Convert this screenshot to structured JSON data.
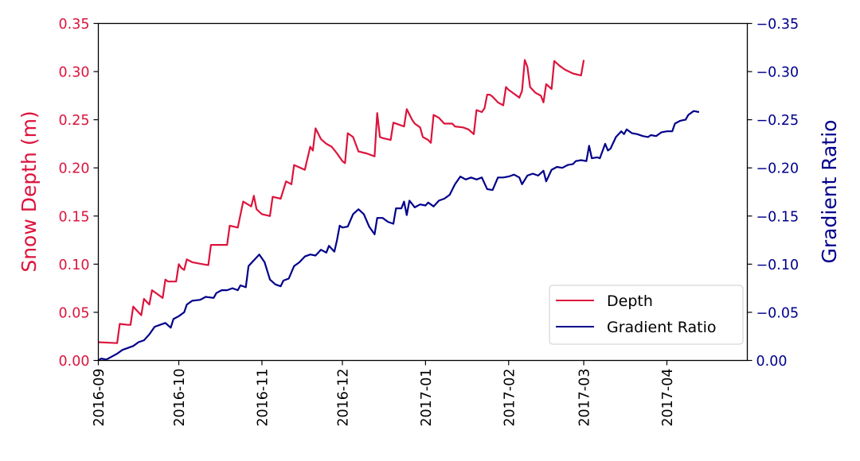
{
  "chart_data": {
    "type": "line",
    "xlabel": "",
    "x_ticks": [
      "2016-09",
      "2016-10",
      "2016-11",
      "2016-12",
      "2017-01",
      "2017-02",
      "2017-03",
      "2017-04"
    ],
    "xlim": [
      "2016-09-01",
      "2017-05-01"
    ],
    "y_left": {
      "label": "Snow Depth (m)",
      "color": "#dc143c",
      "ylim": [
        0,
        0.35
      ],
      "ticks": [
        "0.00",
        "0.05",
        "0.10",
        "0.15",
        "0.20",
        "0.25",
        "0.30",
        "0.35"
      ]
    },
    "y_right": {
      "label": "Gradient Ratio",
      "color": "#00008b",
      "ylim": [
        0,
        -0.35
      ],
      "ticks": [
        "0.00",
        "−0.05",
        "−0.10",
        "−0.15",
        "−0.20",
        "−0.25",
        "−0.30",
        "−0.35"
      ]
    },
    "legend": {
      "placement": "lower-right"
    },
    "grid": false,
    "series": [
      {
        "name": "Depth",
        "axis": "left",
        "color": "#dc143c",
        "points": [
          [
            "2016-09-01",
            0.019
          ],
          [
            "2016-09-08",
            0.018
          ],
          [
            "2016-09-09",
            0.038
          ],
          [
            "2016-09-12",
            0.037
          ],
          [
            "2016-09-13",
            0.037
          ],
          [
            "2016-09-14",
            0.056
          ],
          [
            "2016-09-17",
            0.047
          ],
          [
            "2016-09-18",
            0.064
          ],
          [
            "2016-09-19",
            0.061
          ],
          [
            "2016-09-20",
            0.058
          ],
          [
            "2016-09-21",
            0.073
          ],
          [
            "2016-09-25",
            0.065
          ],
          [
            "2016-09-26",
            0.084
          ],
          [
            "2016-09-27",
            0.082
          ],
          [
            "2016-09-30",
            0.082
          ],
          [
            "2016-10-01",
            0.1
          ],
          [
            "2016-10-02",
            0.096
          ],
          [
            "2016-10-03",
            0.094
          ],
          [
            "2016-10-04",
            0.105
          ],
          [
            "2016-10-06",
            0.102
          ],
          [
            "2016-10-10",
            0.1
          ],
          [
            "2016-10-12",
            0.099
          ],
          [
            "2016-10-13",
            0.12
          ],
          [
            "2016-10-15",
            0.12
          ],
          [
            "2016-10-19",
            0.12
          ],
          [
            "2016-10-20",
            0.14
          ],
          [
            "2016-10-23",
            0.138
          ],
          [
            "2016-10-25",
            0.165
          ],
          [
            "2016-10-28",
            0.16
          ],
          [
            "2016-10-29",
            0.171
          ],
          [
            "2016-10-30",
            0.157
          ],
          [
            "2016-11-01",
            0.152
          ],
          [
            "2016-11-04",
            0.15
          ],
          [
            "2016-11-05",
            0.17
          ],
          [
            "2016-11-08",
            0.168
          ],
          [
            "2016-11-10",
            0.186
          ],
          [
            "2016-11-12",
            0.183
          ],
          [
            "2016-11-13",
            0.203
          ],
          [
            "2016-11-17",
            0.198
          ],
          [
            "2016-11-19",
            0.222
          ],
          [
            "2016-11-20",
            0.218
          ],
          [
            "2016-11-21",
            0.241
          ],
          [
            "2016-11-23",
            0.23
          ],
          [
            "2016-11-25",
            0.225
          ],
          [
            "2016-11-27",
            0.222
          ],
          [
            "2016-11-29",
            0.215
          ],
          [
            "2016-12-01",
            0.207
          ],
          [
            "2016-12-02",
            0.205
          ],
          [
            "2016-12-03",
            0.236
          ],
          [
            "2016-12-05",
            0.232
          ],
          [
            "2016-12-07",
            0.217
          ],
          [
            "2016-12-10",
            0.215
          ],
          [
            "2016-12-13",
            0.212
          ],
          [
            "2016-12-14",
            0.257
          ],
          [
            "2016-12-15",
            0.232
          ],
          [
            "2016-12-16",
            0.231
          ],
          [
            "2016-12-19",
            0.229
          ],
          [
            "2016-12-20",
            0.247
          ],
          [
            "2016-12-22",
            0.245
          ],
          [
            "2016-12-24",
            0.243
          ],
          [
            "2016-12-25",
            0.261
          ],
          [
            "2016-12-27",
            0.25
          ],
          [
            "2016-12-28",
            0.246
          ],
          [
            "2016-12-30",
            0.242
          ],
          [
            "2016-12-31",
            0.232
          ],
          [
            "2017-01-02",
            0.229
          ],
          [
            "2017-01-03",
            0.226
          ],
          [
            "2017-01-04",
            0.255
          ],
          [
            "2017-01-06",
            0.252
          ],
          [
            "2017-01-08",
            0.246
          ],
          [
            "2017-01-11",
            0.246
          ],
          [
            "2017-01-12",
            0.243
          ],
          [
            "2017-01-15",
            0.242
          ],
          [
            "2017-01-17",
            0.24
          ],
          [
            "2017-01-19",
            0.235
          ],
          [
            "2017-01-20",
            0.26
          ],
          [
            "2017-01-22",
            0.258
          ],
          [
            "2017-01-23",
            0.262
          ],
          [
            "2017-01-24",
            0.276
          ],
          [
            "2017-01-25",
            0.276
          ],
          [
            "2017-01-26",
            0.274
          ],
          [
            "2017-01-28",
            0.268
          ],
          [
            "2017-01-30",
            0.265
          ],
          [
            "2017-01-31",
            0.284
          ],
          [
            "2017-02-01",
            0.281
          ],
          [
            "2017-02-03",
            0.277
          ],
          [
            "2017-02-05",
            0.273
          ],
          [
            "2017-02-06",
            0.28
          ],
          [
            "2017-02-07",
            0.312
          ],
          [
            "2017-02-08",
            0.305
          ],
          [
            "2017-02-09",
            0.284
          ],
          [
            "2017-02-11",
            0.278
          ],
          [
            "2017-02-13",
            0.275
          ],
          [
            "2017-02-14",
            0.268
          ],
          [
            "2017-02-15",
            0.287
          ],
          [
            "2017-02-17",
            0.282
          ],
          [
            "2017-02-18",
            0.311
          ],
          [
            "2017-02-20",
            0.306
          ],
          [
            "2017-02-22",
            0.302
          ],
          [
            "2017-02-25",
            0.298
          ],
          [
            "2017-02-28",
            0.296
          ],
          [
            "2017-03-01",
            0.312
          ]
        ]
      },
      {
        "name": "Gradient Ratio",
        "axis": "right",
        "color": "#00008b",
        "points": [
          [
            "2016-09-01",
            0.0
          ],
          [
            "2016-09-02",
            -0.002
          ],
          [
            "2016-09-04",
            -0.001
          ],
          [
            "2016-09-06",
            -0.004
          ],
          [
            "2016-09-08",
            -0.007
          ],
          [
            "2016-09-10",
            -0.011
          ],
          [
            "2016-09-12",
            -0.013
          ],
          [
            "2016-09-14",
            -0.015
          ],
          [
            "2016-09-16",
            -0.019
          ],
          [
            "2016-09-18",
            -0.021
          ],
          [
            "2016-09-20",
            -0.027
          ],
          [
            "2016-09-22",
            -0.035
          ],
          [
            "2016-09-24",
            -0.037
          ],
          [
            "2016-09-26",
            -0.039
          ],
          [
            "2016-09-28",
            -0.034
          ],
          [
            "2016-09-29",
            -0.043
          ],
          [
            "2016-10-01",
            -0.046
          ],
          [
            "2016-10-03",
            -0.05
          ],
          [
            "2016-10-04",
            -0.058
          ],
          [
            "2016-10-06",
            -0.062
          ],
          [
            "2016-10-09",
            -0.063
          ],
          [
            "2016-10-11",
            -0.066
          ],
          [
            "2016-10-14",
            -0.065
          ],
          [
            "2016-10-15",
            -0.07
          ],
          [
            "2016-10-17",
            -0.073
          ],
          [
            "2016-10-19",
            -0.073
          ],
          [
            "2016-10-21",
            -0.075
          ],
          [
            "2016-10-23",
            -0.073
          ],
          [
            "2016-10-24",
            -0.078
          ],
          [
            "2016-10-26",
            -0.076
          ],
          [
            "2016-10-27",
            -0.098
          ],
          [
            "2016-10-29",
            -0.104
          ],
          [
            "2016-10-31",
            -0.11
          ],
          [
            "2016-11-02",
            -0.102
          ],
          [
            "2016-11-04",
            -0.084
          ],
          [
            "2016-11-06",
            -0.079
          ],
          [
            "2016-11-08",
            -0.077
          ],
          [
            "2016-11-09",
            -0.083
          ],
          [
            "2016-11-11",
            -0.085
          ],
          [
            "2016-11-13",
            -0.098
          ],
          [
            "2016-11-15",
            -0.102
          ],
          [
            "2016-11-17",
            -0.108
          ],
          [
            "2016-11-19",
            -0.11
          ],
          [
            "2016-11-21",
            -0.109
          ],
          [
            "2016-11-23",
            -0.115
          ],
          [
            "2016-11-25",
            -0.112
          ],
          [
            "2016-11-26",
            -0.119
          ],
          [
            "2016-11-28",
            -0.113
          ],
          [
            "2016-11-29",
            -0.125
          ],
          [
            "2016-11-30",
            -0.14
          ],
          [
            "2016-12-01",
            -0.138
          ],
          [
            "2016-12-03",
            -0.139
          ],
          [
            "2016-12-05",
            -0.152
          ],
          [
            "2016-12-07",
            -0.157
          ],
          [
            "2016-12-09",
            -0.152
          ],
          [
            "2016-12-11",
            -0.139
          ],
          [
            "2016-12-13",
            -0.131
          ],
          [
            "2016-12-14",
            -0.148
          ],
          [
            "2016-12-16",
            -0.148
          ],
          [
            "2016-12-18",
            -0.144
          ],
          [
            "2016-12-20",
            -0.142
          ],
          [
            "2016-12-21",
            -0.158
          ],
          [
            "2016-12-23",
            -0.158
          ],
          [
            "2016-12-24",
            -0.165
          ],
          [
            "2016-12-25",
            -0.151
          ],
          [
            "2016-12-26",
            -0.166
          ],
          [
            "2016-12-28",
            -0.159
          ],
          [
            "2016-12-30",
            -0.162
          ],
          [
            "2017-01-01",
            -0.161
          ],
          [
            "2017-01-02",
            -0.164
          ],
          [
            "2017-01-04",
            -0.16
          ],
          [
            "2017-01-06",
            -0.166
          ],
          [
            "2017-01-08",
            -0.168
          ],
          [
            "2017-01-10",
            -0.172
          ],
          [
            "2017-01-12",
            -0.183
          ],
          [
            "2017-01-14",
            -0.191
          ],
          [
            "2017-01-16",
            -0.188
          ],
          [
            "2017-01-18",
            -0.19
          ],
          [
            "2017-01-20",
            -0.188
          ],
          [
            "2017-01-22",
            -0.19
          ],
          [
            "2017-01-24",
            -0.178
          ],
          [
            "2017-01-26",
            -0.177
          ],
          [
            "2017-01-28",
            -0.19
          ],
          [
            "2017-01-30",
            -0.19
          ],
          [
            "2017-02-01",
            -0.191
          ],
          [
            "2017-02-03",
            -0.193
          ],
          [
            "2017-02-05",
            -0.19
          ],
          [
            "2017-02-06",
            -0.183
          ],
          [
            "2017-02-08",
            -0.192
          ],
          [
            "2017-02-10",
            -0.194
          ],
          [
            "2017-02-12",
            -0.192
          ],
          [
            "2017-02-14",
            -0.197
          ],
          [
            "2017-02-15",
            -0.186
          ],
          [
            "2017-02-17",
            -0.198
          ],
          [
            "2017-02-19",
            -0.201
          ],
          [
            "2017-02-21",
            -0.2
          ],
          [
            "2017-02-23",
            -0.203
          ],
          [
            "2017-02-25",
            -0.204
          ],
          [
            "2017-02-26",
            -0.207
          ],
          [
            "2017-02-28",
            -0.208
          ],
          [
            "2017-03-02",
            -0.207
          ],
          [
            "2017-03-03",
            -0.223
          ],
          [
            "2017-03-04",
            -0.21
          ],
          [
            "2017-03-06",
            -0.211
          ],
          [
            "2017-03-07",
            -0.21
          ],
          [
            "2017-03-09",
            -0.225
          ],
          [
            "2017-03-10",
            -0.218
          ],
          [
            "2017-03-11",
            -0.22
          ],
          [
            "2017-03-13",
            -0.232
          ],
          [
            "2017-03-15",
            -0.238
          ],
          [
            "2017-03-16",
            -0.235
          ],
          [
            "2017-03-17",
            -0.24
          ],
          [
            "2017-03-19",
            -0.236
          ],
          [
            "2017-03-21",
            -0.235
          ],
          [
            "2017-03-23",
            -0.233
          ],
          [
            "2017-03-25",
            -0.232
          ],
          [
            "2017-03-26",
            -0.234
          ],
          [
            "2017-03-28",
            -0.233
          ],
          [
            "2017-03-30",
            -0.237
          ],
          [
            "2017-04-01",
            -0.238
          ],
          [
            "2017-04-03",
            -0.238
          ],
          [
            "2017-04-04",
            -0.246
          ],
          [
            "2017-04-06",
            -0.249
          ],
          [
            "2017-04-08",
            -0.25
          ],
          [
            "2017-04-09",
            -0.255
          ],
          [
            "2017-04-11",
            -0.259
          ],
          [
            "2017-04-13",
            -0.258
          ]
        ]
      }
    ]
  }
}
